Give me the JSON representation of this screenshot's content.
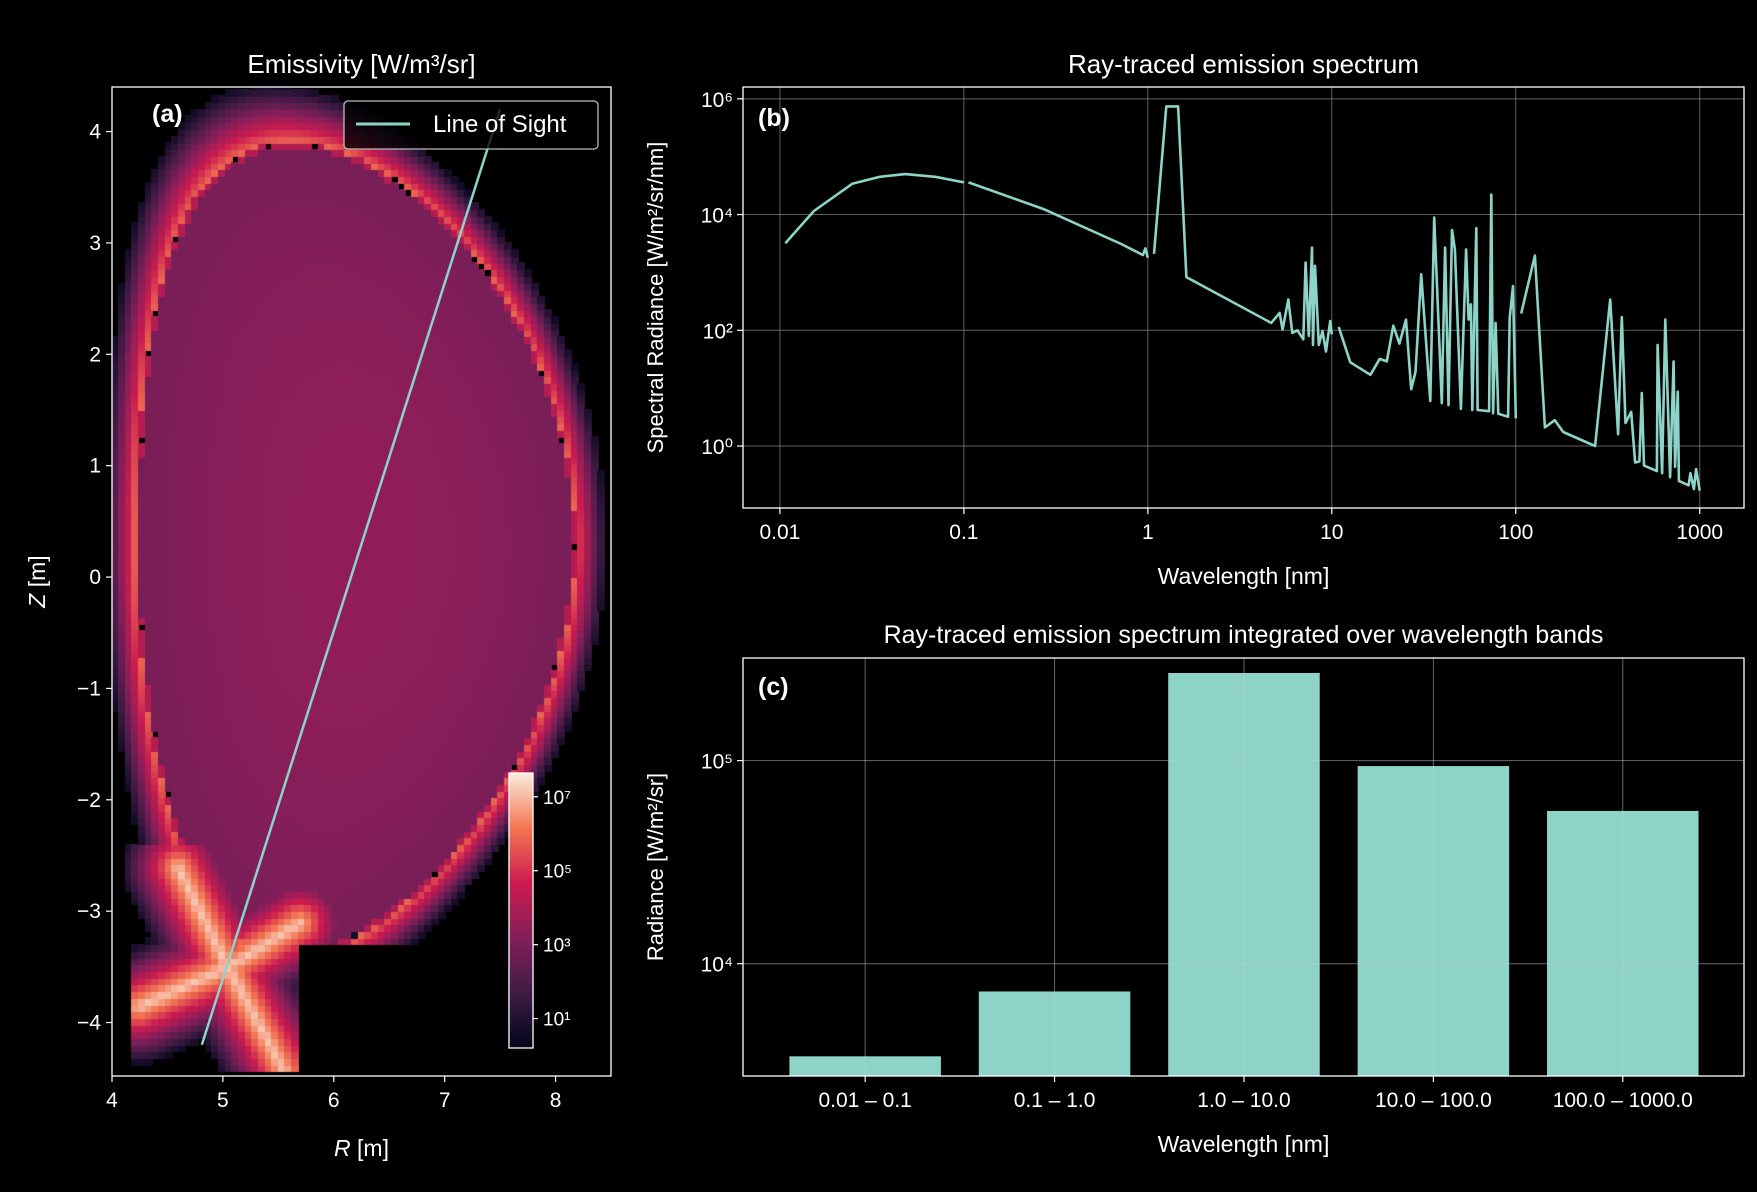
{
  "figure": {
    "background": "#000000",
    "line_color": "#8dd3c7",
    "bar_color": "#8dd3c7"
  },
  "chart_data": [
    {
      "panel": "(a)",
      "type": "heatmap",
      "title": "Emissivity [W/m³/sr]",
      "xlabel_var": "R",
      "xlabel_unit": " [m]",
      "ylabel_var": "Z",
      "ylabel_unit": " [m]",
      "xlim": [
        4,
        8.5
      ],
      "ylim": [
        -4.48,
        4.4
      ],
      "xticks": [
        4,
        5,
        6,
        7,
        8
      ],
      "xtick_labels": [
        "4",
        "5",
        "6",
        "7",
        "8"
      ],
      "yticks": [
        4,
        3,
        2,
        1,
        0,
        -1,
        -2,
        -3,
        -4
      ],
      "ytick_labels": [
        "4",
        "3",
        "2",
        "1",
        "0",
        "−1",
        "−2",
        "−3",
        "−4"
      ],
      "grid": false,
      "colormap": "rocket",
      "colorbar": {
        "scale": "log",
        "range": [
          1.6,
          44000000.0
        ],
        "ticks": [
          10000000.0,
          100000.0,
          1000.0,
          10.0
        ],
        "tick_labels": [
          "10⁷",
          "10⁵",
          "10³",
          "10¹"
        ],
        "placement": "inside lower-right"
      },
      "line_of_sight": {
        "label": "Line of Sight",
        "start": [
          4.81,
          -4.2
        ],
        "end": [
          7.5,
          4.2
        ]
      },
      "legend": {
        "entries": [
          "Line of Sight"
        ],
        "placement": "upper-right"
      }
    },
    {
      "panel": "(b)",
      "type": "line",
      "title": "Ray-traced emission spectrum",
      "xlabel": "Wavelength [nm]",
      "ylabel": "Spectral Radiance [W/m²/sr/nm]",
      "xscale": "log",
      "yscale": "log",
      "xlim": [
        0.0063,
        1740
      ],
      "ylim": [
        0.085,
        1600000.0
      ],
      "xticks": [
        0.01,
        0.1,
        1,
        10,
        100,
        1000
      ],
      "xtick_labels": [
        "0.01",
        "0.1",
        "1",
        "10",
        "100",
        "1000"
      ],
      "yticks": [
        1,
        100,
        10000,
        1000000
      ],
      "ytick_labels": [
        "10⁰",
        "10²",
        "10⁴",
        "10⁶"
      ],
      "grid": true,
      "segments": [
        {
          "x": [
            0.0107,
            0.0153,
            0.0247,
            0.035,
            0.048,
            0.07,
            0.1
          ],
          "y": [
            3200,
            11500,
            34000,
            45000,
            50000,
            45000,
            36000
          ]
        },
        {
          "x": [
            0.106,
            0.274,
            0.716,
            0.94,
            0.97,
            1.0
          ],
          "y": [
            36000,
            12300,
            3100,
            2000,
            2600,
            1800
          ]
        },
        {
          "x": [
            1.08,
            1.26,
            1.46,
            1.62,
            4.68,
            5.2,
            5.4,
            5.8,
            6.1,
            6.5,
            7.0,
            7.2,
            7.5,
            7.8,
            7.9,
            8.1,
            8.5,
            8.9,
            9.3,
            9.8,
            10.0
          ],
          "y": [
            2100,
            740000,
            740000,
            830,
            134,
            200,
            103,
            340,
            90,
            100,
            70,
            1480,
            80,
            2700,
            56,
            1300,
            56,
            97,
            43,
            145,
            85
          ]
        },
        {
          "x": [
            10.9,
            12.6,
            16.2,
            18.2,
            19.9,
            21.6,
            23.3,
            25.3,
            27,
            28.5,
            30.6,
            34.3,
            36,
            39.6,
            41.3,
            43.1,
            45,
            46.7,
            50.3,
            53.7,
            55.4,
            57,
            58,
            61,
            62,
            71.6,
            73.6,
            75.3,
            77.7,
            80.3,
            90.8,
            92.7,
            96.6,
            100
          ],
          "y": [
            114,
            28,
            17,
            32,
            29,
            120,
            59,
            153,
            9.6,
            19,
            930,
            6,
            8900,
            5.5,
            2700,
            5.1,
            5400,
            2500,
            4.4,
            2500,
            153,
            280,
            4.2,
            5800,
            4.2,
            4,
            22000,
            3.7,
            134,
            3.6,
            3.2,
            164,
            580,
            3.0
          ]
        },
        {
          "x": [
            107,
            127,
            144,
            163,
            181,
            270,
            326,
            360,
            377,
            395,
            424,
            445,
            470,
            484,
            498,
            585,
            590,
            624,
            650,
            690,
            721,
            735,
            760,
            770,
            870,
            890,
            930,
            955,
            1000
          ],
          "y": [
            195,
            1950,
            2.1,
            2.8,
            1.75,
            1.0,
            340,
            1.6,
            170,
            2.5,
            3.9,
            0.52,
            0.54,
            8.3,
            0.46,
            0.37,
            56,
            0.34,
            153,
            0.29,
            29,
            0.44,
            8.7,
            0.25,
            0.21,
            0.34,
            0.18,
            0.4,
            0.17
          ]
        }
      ]
    },
    {
      "panel": "(c)",
      "type": "bar",
      "title": "Ray-traced emission spectrum integrated over wavelength bands",
      "xlabel": "Wavelength [nm]",
      "ylabel": "Radiance [W/m²/sr]",
      "yscale": "log",
      "ylim": [
        2800,
        320000
      ],
      "categories": [
        "0.01 – 0.1",
        "0.1 – 1.0",
        "1.0 – 10.0",
        "10.0 – 100.0",
        "100.0 – 1000.0"
      ],
      "values": [
        3500,
        7300,
        270000,
        94000,
        56500
      ],
      "yticks": [
        10000,
        100000
      ],
      "ytick_labels": [
        "10⁴",
        "10⁵"
      ],
      "grid": true
    }
  ]
}
